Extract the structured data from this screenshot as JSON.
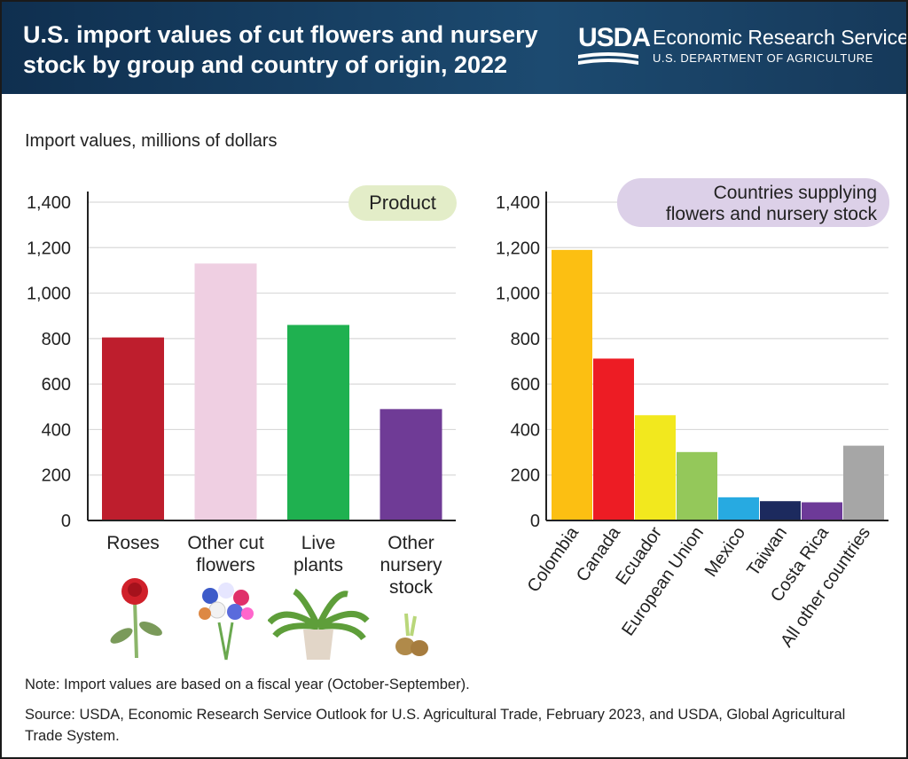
{
  "header": {
    "title": "U.S. import values of cut flowers and nursery stock by group and country of origin, 2022",
    "logo_text": "USDA",
    "agency": "Economic Research Service",
    "department": "U.S. DEPARTMENT OF AGRICULTURE"
  },
  "ylabel": "Import values, millions of dollars",
  "note": "Note: Import values are based on a fiscal year (October-September).",
  "source": "Source: USDA, Economic Research Service Outlook for U.S. Agricultural Trade, February 2023, and USDA, Global Agricultural Trade System.",
  "chart_data": [
    {
      "type": "bar",
      "title": "Product",
      "title_bg": "#e3edc8",
      "ylabel": "Import values, millions of dollars",
      "ylim": [
        0,
        1400
      ],
      "yticks": [
        "0",
        "200",
        "400",
        "600",
        "800",
        "1,000",
        "1,200",
        "1,400"
      ],
      "grid": true,
      "categories": [
        [
          "Roses"
        ],
        [
          "Other cut",
          "flowers"
        ],
        [
          "Live",
          "plants"
        ],
        [
          "Other",
          "nursery",
          "stock"
        ]
      ],
      "category_names": [
        "Roses",
        "Other cut flowers",
        "Live plants",
        "Other nursery stock"
      ],
      "values": [
        805,
        1130,
        860,
        490
      ],
      "colors": [
        "#be1e2d",
        "#efcfe2",
        "#1fb150",
        "#6f3b96"
      ]
    },
    {
      "type": "bar",
      "title": [
        "Countries supplying",
        "flowers and nursery stock"
      ],
      "title_bg": "#dcd0e8",
      "ylim": [
        0,
        1400
      ],
      "yticks": [
        "0",
        "200",
        "400",
        "600",
        "800",
        "1,000",
        "1,200",
        "1,400"
      ],
      "grid": true,
      "categories": [
        "Colombia",
        "Canada",
        "Ecuador",
        "European Union",
        "Mexico",
        "Taiwan",
        "Costa Rica",
        "All other countries"
      ],
      "values": [
        1190,
        712,
        463,
        301,
        102,
        85,
        80,
        329
      ],
      "colors": [
        "#fcbf12",
        "#ed1c24",
        "#f2e81e",
        "#94c85a",
        "#27aae1",
        "#1c2a5e",
        "#6d3a98",
        "#a6a6a6"
      ]
    }
  ]
}
